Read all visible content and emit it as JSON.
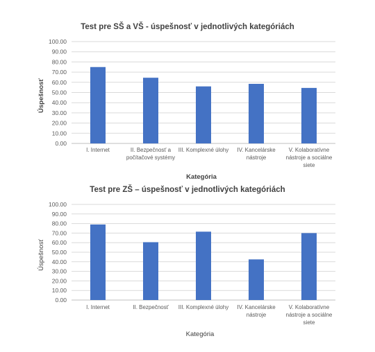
{
  "chart_data": [
    {
      "type": "bar",
      "title": "Test pre SŠ a VŠ - úspešnosť v jednotlivých kategóriách",
      "xlabel": "Kategória",
      "ylabel": "Úspešnosť",
      "ylim": [
        0,
        100
      ],
      "ytick_step": 10,
      "grid": true,
      "categories": [
        [
          "I. Internet"
        ],
        [
          "II. Bezpečnosť a",
          "počítačové systémy"
        ],
        [
          "III. Komplexné úlohy"
        ],
        [
          "IV. Kancelárske",
          "nástroje"
        ],
        [
          "V. Kolaboratívne",
          "nástroje a sociálne",
          "siete"
        ]
      ],
      "values": [
        75.0,
        64.5,
        56.0,
        58.5,
        54.5
      ],
      "bar_color": "#4472c4"
    },
    {
      "type": "bar",
      "title": "Test pre ZŠ – úspešnosť v jednotlivých kategóriách",
      "xlabel": "Kategória",
      "ylabel": "Úspešnosť",
      "ylim": [
        0,
        100
      ],
      "ytick_step": 10,
      "grid": true,
      "categories": [
        [
          "I. Internet"
        ],
        [
          "II. Bezpečnosť"
        ],
        [
          "III. Komplexné úlohy"
        ],
        [
          "IV. Kancelárske",
          "nástroje"
        ],
        [
          "V. Kolaboratívne",
          "nástroje a sociálne",
          "siete"
        ]
      ],
      "values": [
        79.0,
        60.5,
        71.5,
        42.5,
        70.0
      ],
      "bar_color": "#4472c4"
    }
  ]
}
